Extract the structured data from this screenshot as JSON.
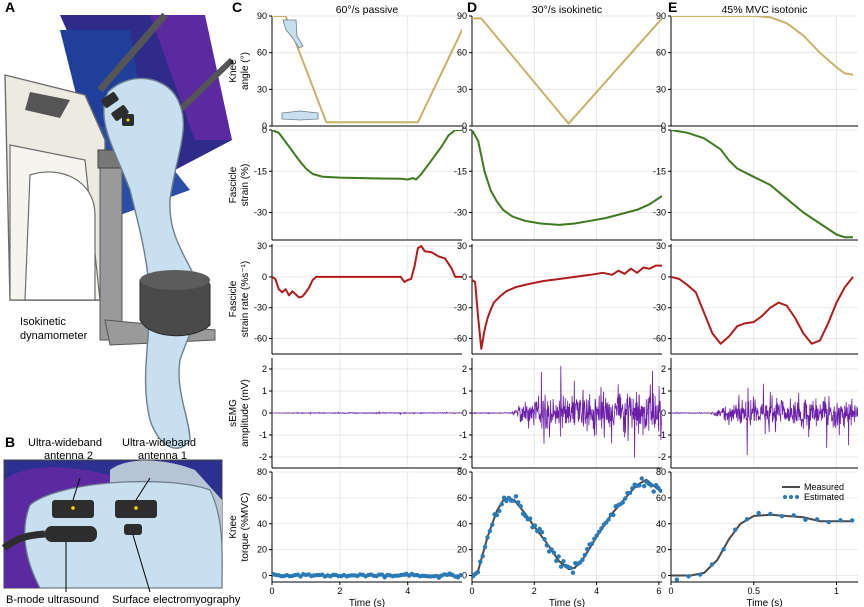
{
  "panels": {
    "A": "A",
    "B": "B",
    "C": "C",
    "D": "D",
    "E": "E"
  },
  "illustration_a": {
    "label_line1": "Isokinetic",
    "label_line2": "dynamometer"
  },
  "illustration_b": {
    "ant2_line1": "Ultra-wideband",
    "ant2_line2": "antenna 2",
    "ant1_line1": "Ultra-wideband",
    "ant1_line2": "antenna 1",
    "bmode": "B-mode ultrasound",
    "semg": "Surface electromyography"
  },
  "colors": {
    "angle": "#c8b26a",
    "strain": "#3d7a1e",
    "rate": "#b01c1c",
    "emg": "#6b1fa8",
    "measured": "#4a4a4a",
    "estimated": "#2a7ab8"
  },
  "row_labels": [
    [
      "Knee",
      "angle (°)"
    ],
    [
      "Fascicle",
      "strain (%)"
    ],
    [
      "Fascicle",
      "strain rate (%s⁻¹)"
    ],
    [
      "sEMG",
      "amplitude (mV)"
    ],
    [
      "Knee",
      "torque (%MVC)"
    ]
  ],
  "legend": {
    "measured": "Measured",
    "estimated": "Estimated"
  },
  "chart_data": [
    {
      "type": "line",
      "panel": "C",
      "title": "60°/s passive",
      "xlabel": "Time (s)",
      "xlim": [
        0,
        5.6
      ],
      "xticks": [
        0,
        2,
        4
      ],
      "rows": {
        "angle": {
          "ylim": [
            0,
            90
          ],
          "yticks": [
            0,
            30,
            60,
            90
          ],
          "x": [
            0,
            0.4,
            1.6,
            3.0,
            3.15,
            3.9,
            4.0,
            4.3,
            5.8
          ],
          "y": [
            90,
            90,
            3,
            3,
            3,
            3,
            3,
            3,
            90
          ]
        },
        "strain": {
          "ylim": [
            -40,
            0
          ],
          "yticks": [
            0,
            -15,
            -30
          ],
          "x": [
            0,
            0.2,
            0.5,
            0.8,
            1.0,
            1.2,
            1.5,
            2.0,
            3.0,
            3.8,
            4.0,
            4.15,
            4.25,
            4.4,
            4.7,
            5.0,
            5.2,
            5.4,
            5.6
          ],
          "y": [
            0,
            -1,
            -6,
            -11,
            -14,
            -16,
            -17,
            -17.3,
            -17.6,
            -17.7,
            -18,
            -17.5,
            -18,
            -16,
            -11,
            -6,
            -2,
            0,
            0
          ]
        },
        "rate": {
          "ylim": [
            -75,
            32
          ],
          "yticks": [
            30,
            0,
            -30,
            -60
          ],
          "x": [
            0,
            0.1,
            0.2,
            0.3,
            0.4,
            0.5,
            0.6,
            0.7,
            0.8,
            0.9,
            1.0,
            1.1,
            1.2,
            1.3,
            1.5,
            2.0,
            3.0,
            3.8,
            3.9,
            4.0,
            4.1,
            4.2,
            4.3,
            4.4,
            4.5,
            4.7,
            4.9,
            5.1,
            5.3,
            5.4,
            5.6
          ],
          "y": [
            0,
            -2,
            -12,
            -15,
            -12,
            -18,
            -14,
            -17,
            -20,
            -19,
            -15,
            -10,
            -3,
            0,
            0,
            0,
            0,
            0,
            -5,
            -3,
            -2,
            10,
            28,
            30,
            25,
            24,
            20,
            18,
            8,
            0,
            0
          ]
        },
        "emg": {
          "ylim": [
            -2.5,
            2.5
          ],
          "yticks": [
            2,
            1,
            0,
            -1,
            -2
          ],
          "amp": 0.02,
          "start": 0
        },
        "torque": {
          "ylim": [
            -5,
            80
          ],
          "yticks": [
            0,
            20,
            40,
            60,
            80
          ],
          "measured_x": [
            0,
            5.6
          ],
          "measured_y": [
            0,
            0
          ],
          "estimated_noise": 1.5,
          "estimated_n": 70
        }
      }
    },
    {
      "type": "line",
      "panel": "D",
      "title": "30°/s isokinetic",
      "xlabel": "Time (s)",
      "xlim": [
        0,
        6.1
      ],
      "xticks": [
        0,
        2,
        4,
        6
      ],
      "rows": {
        "angle": {
          "ylim": [
            0,
            90
          ],
          "yticks": [
            0,
            30,
            60,
            90
          ],
          "x": [
            0,
            0.3,
            3.1,
            6.1
          ],
          "y": [
            88,
            88,
            2,
            88
          ]
        },
        "strain": {
          "ylim": [
            -40,
            0
          ],
          "yticks": [
            0,
            -15,
            -30
          ],
          "x": [
            0,
            0.2,
            0.4,
            0.6,
            0.8,
            1.0,
            1.3,
            1.7,
            2.2,
            2.8,
            3.3,
            3.8,
            4.3,
            4.8,
            5.3,
            5.7,
            6.1
          ],
          "y": [
            0,
            -4,
            -15,
            -22,
            -26,
            -29,
            -31.5,
            -33,
            -34,
            -34.5,
            -34,
            -33,
            -32,
            -30.5,
            -29,
            -27,
            -24
          ]
        },
        "rate": {
          "ylim": [
            -75,
            32
          ],
          "yticks": [
            30,
            0,
            -30,
            -60
          ],
          "x": [
            0,
            0.1,
            0.2,
            0.3,
            0.4,
            0.5,
            0.6,
            0.7,
            0.9,
            1.1,
            1.4,
            1.8,
            2.3,
            2.8,
            3.3,
            3.8,
            4.2,
            4.5,
            4.7,
            4.9,
            5.1,
            5.3,
            5.5,
            5.7,
            5.9,
            6.1
          ],
          "y": [
            -3,
            -5,
            -40,
            -70,
            -52,
            -40,
            -32,
            -25,
            -19,
            -14,
            -10,
            -7,
            -4,
            -2,
            0,
            2,
            4,
            2,
            6,
            3,
            8,
            4,
            9,
            8,
            11,
            11
          ]
        },
        "emg": {
          "ylim": [
            -2.5,
            2.5
          ],
          "yticks": [
            2,
            1,
            0,
            -1,
            -2
          ],
          "amp": 1.0,
          "start": 0.2
        },
        "torque": {
          "ylim": [
            -5,
            80
          ],
          "yticks": [
            0,
            20,
            40,
            60,
            80
          ],
          "measured_x": [
            0,
            0.2,
            0.5,
            0.8,
            1.0,
            1.2,
            1.4,
            1.7,
            2.0,
            2.4,
            2.8,
            3.1,
            3.3,
            3.6,
            4.0,
            4.5,
            5.0,
            5.3,
            5.6,
            5.8,
            6.0
          ],
          "measured_y": [
            0,
            4,
            30,
            50,
            58,
            60,
            57,
            48,
            38,
            25,
            11,
            5,
            6,
            14,
            30,
            48,
            62,
            70,
            74,
            70,
            66
          ],
          "estimated_noise": 4.0,
          "estimated_n": 80
        }
      }
    },
    {
      "type": "line",
      "panel": "E",
      "title": "45% MVC isotonic",
      "xlabel": "Time (s)",
      "xlim": [
        0,
        1.13
      ],
      "xticks": [
        0,
        0.5,
        1
      ],
      "rows": {
        "angle": {
          "ylim": [
            0,
            90
          ],
          "yticks": [
            0,
            30,
            60,
            90
          ],
          "x": [
            0,
            0.1,
            0.3,
            0.5,
            0.6,
            0.7,
            0.8,
            0.9,
            1.0,
            1.05,
            1.1
          ],
          "y": [
            90,
            90,
            90,
            90,
            89,
            84,
            74,
            60,
            48,
            43,
            42
          ]
        },
        "strain": {
          "ylim": [
            -40,
            0
          ],
          "yticks": [
            0,
            -15,
            -30
          ],
          "x": [
            0,
            0.1,
            0.2,
            0.3,
            0.35,
            0.4,
            0.5,
            0.6,
            0.7,
            0.8,
            0.9,
            1.0,
            1.05,
            1.1
          ],
          "y": [
            0,
            -1,
            -3,
            -7,
            -11,
            -14,
            -17,
            -20,
            -25,
            -30,
            -34,
            -38,
            -39,
            -39
          ]
        },
        "rate": {
          "ylim": [
            -75,
            32
          ],
          "yticks": [
            30,
            0,
            -30,
            -60
          ],
          "x": [
            0,
            0.05,
            0.1,
            0.15,
            0.2,
            0.25,
            0.3,
            0.35,
            0.4,
            0.45,
            0.5,
            0.55,
            0.6,
            0.65,
            0.7,
            0.75,
            0.8,
            0.85,
            0.9,
            0.95,
            1.0,
            1.05,
            1.1
          ],
          "y": [
            0,
            -2,
            -8,
            -15,
            -35,
            -55,
            -65,
            -58,
            -48,
            -45,
            -44,
            -38,
            -30,
            -25,
            -28,
            -40,
            -55,
            -65,
            -62,
            -45,
            -25,
            -10,
            0
          ]
        },
        "emg": {
          "ylim": [
            -2.5,
            2.5
          ],
          "yticks": [
            2,
            1,
            0,
            -1,
            -2
          ],
          "amp": 0.75,
          "start": 0.2
        },
        "torque": {
          "ylim": [
            -5,
            80
          ],
          "yticks": [
            0,
            20,
            40,
            60,
            80
          ],
          "measured_x": [
            0,
            0.12,
            0.2,
            0.28,
            0.35,
            0.42,
            0.5,
            0.6,
            0.7,
            0.8,
            0.9,
            1.0,
            1.1
          ],
          "measured_y": [
            0,
            0,
            2,
            12,
            28,
            40,
            46,
            47,
            46,
            45,
            42,
            42,
            42
          ],
          "estimated_noise": 2.0,
          "estimated_n": 16
        }
      }
    }
  ]
}
